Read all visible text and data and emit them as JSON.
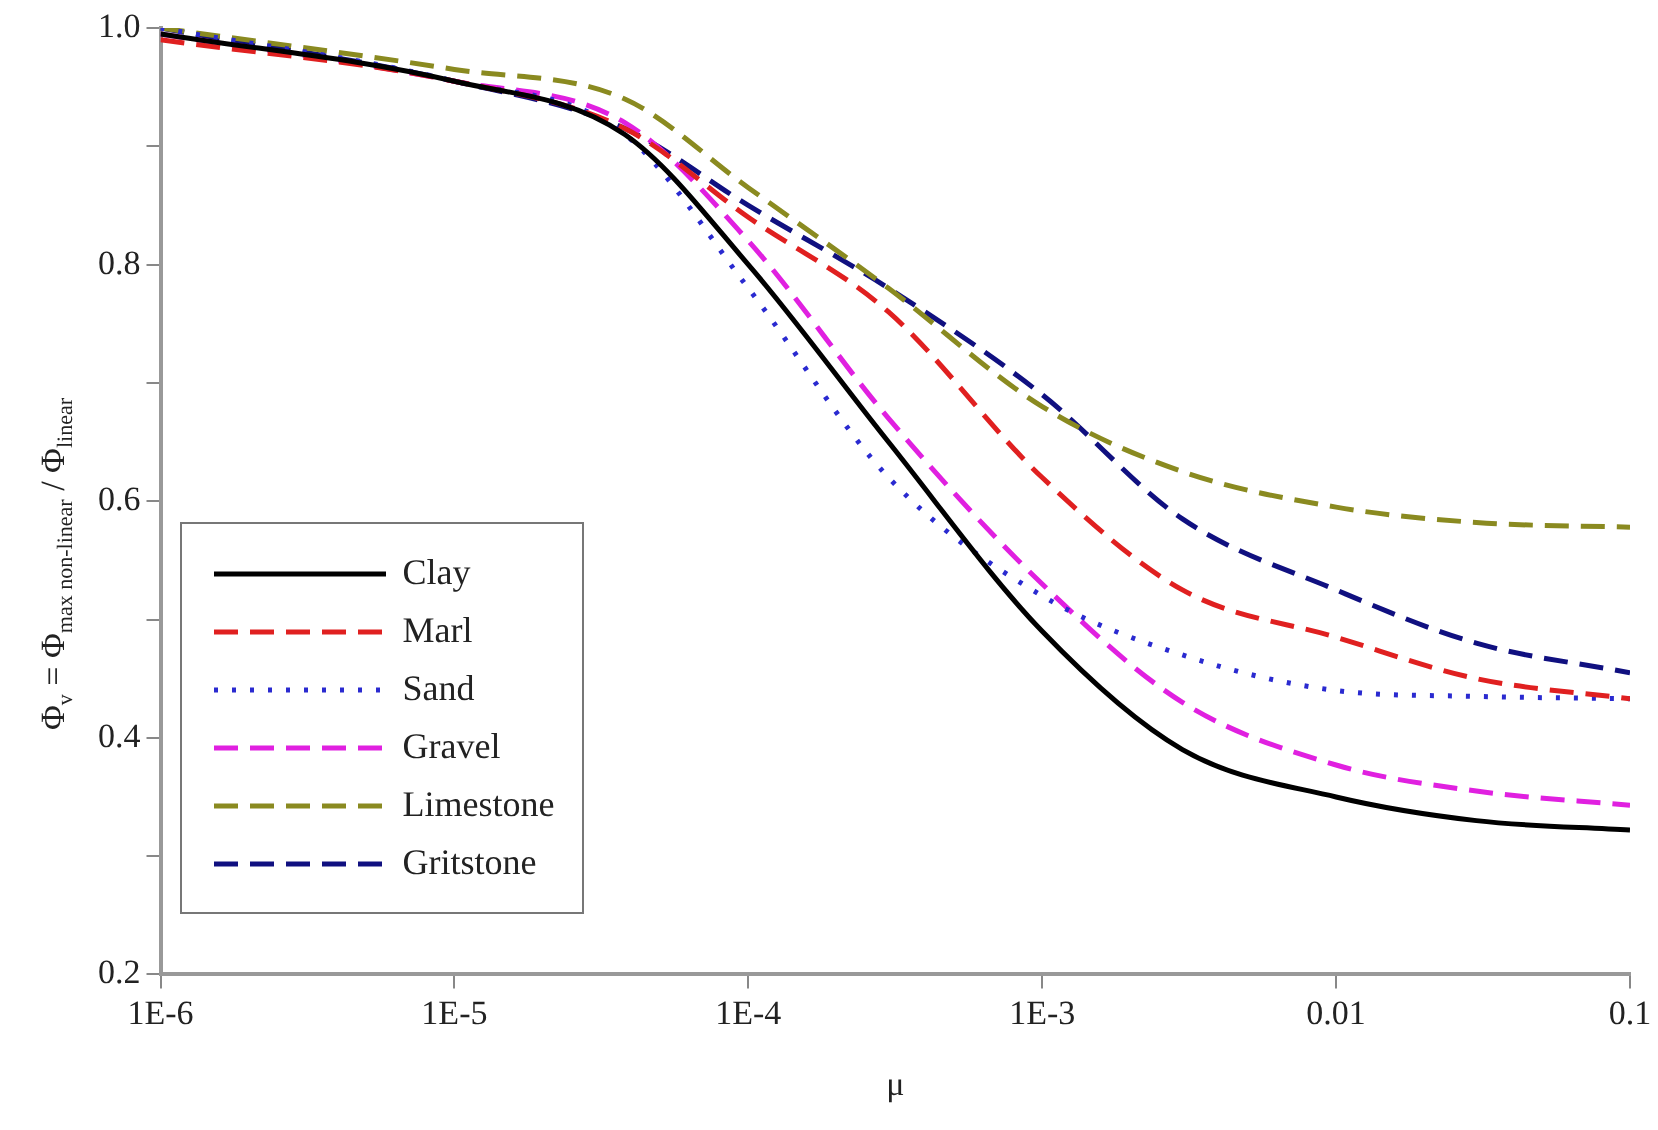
{
  "chart_data": {
    "type": "line",
    "xlabel": "μ",
    "ylabel": "Φ$_{v}$ = Φ$_{max non-linear}$ / Φ$_{linear}$",
    "x": [
      1e-06,
      1e-05,
      3.8e-05,
      0.0001,
      0.0003,
      0.001,
      0.003,
      0.01,
      0.03,
      0.1
    ],
    "series": [
      {
        "name": "Clay",
        "color": "#000000",
        "line_style": "solid",
        "values": [
          0.995,
          0.955,
          0.91,
          0.8,
          0.65,
          0.49,
          0.39,
          0.35,
          0.33,
          0.322
        ]
      },
      {
        "name": "Marl",
        "color": "#e02020",
        "line_style": "dashed",
        "values": [
          0.99,
          0.955,
          0.915,
          0.84,
          0.76,
          0.62,
          0.525,
          0.485,
          0.45,
          0.433
        ]
      },
      {
        "name": "Sand",
        "color": "#2a2ad0",
        "line_style": "dotted",
        "values": [
          1.0,
          0.955,
          0.91,
          0.78,
          0.62,
          0.52,
          0.47,
          0.44,
          0.435,
          0.433
        ]
      },
      {
        "name": "Gravel",
        "color": "#e020e0",
        "line_style": "dashed",
        "values": [
          0.995,
          0.955,
          0.92,
          0.82,
          0.67,
          0.53,
          0.43,
          0.377,
          0.355,
          0.343
        ]
      },
      {
        "name": "Limestone",
        "color": "#8a8a20",
        "line_style": "dashed",
        "values": [
          1.0,
          0.965,
          0.94,
          0.865,
          0.78,
          0.68,
          0.625,
          0.595,
          0.582,
          0.578
        ]
      },
      {
        "name": "Gritstone",
        "color": "#101080",
        "line_style": "dashed",
        "values": [
          1.0,
          0.955,
          0.915,
          0.85,
          0.78,
          0.69,
          0.585,
          0.525,
          0.48,
          0.455
        ]
      }
    ],
    "xlim": [
      1e-06,
      0.1
    ],
    "xticks": [
      {
        "value": 1e-06,
        "label": "1E-6"
      },
      {
        "value": 1e-05,
        "label": "1E-5"
      },
      {
        "value": 0.0001,
        "label": "1E-4"
      },
      {
        "value": 0.001,
        "label": "1E-3"
      },
      0.01,
      0.1
    ],
    "ylim": [
      0.2,
      1.0
    ],
    "yticks": [
      {
        "value": 0.2,
        "label": "0.2"
      },
      {
        "value": 0.3,
        "label": null
      },
      {
        "value": 0.4,
        "label": "0.4"
      },
      {
        "value": 0.5,
        "label": null
      },
      {
        "value": 0.6,
        "label": "0.6"
      },
      {
        "value": 0.7,
        "label": null
      },
      {
        "value": 0.8,
        "label": "0.8"
      },
      {
        "value": 0.9,
        "label": null
      },
      {
        "value": 1.0,
        "label": "1.0"
      }
    ],
    "log": "x",
    "grid": false,
    "legend": "bottom left",
    "marker": "none"
  }
}
